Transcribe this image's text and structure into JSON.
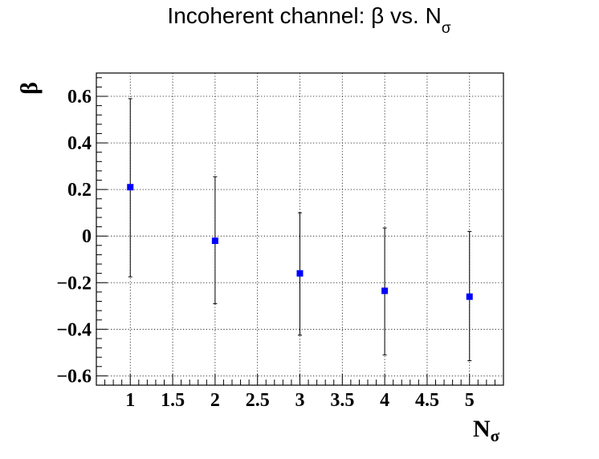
{
  "chart_data": {
    "type": "scatter",
    "title": {
      "main": "Incoherent channel: β vs. N",
      "subscript": "σ"
    },
    "xlabel": {
      "main": "N",
      "subscript": "σ"
    },
    "ylabel": "β",
    "xlim": [
      0.6,
      5.4
    ],
    "ylim": [
      -0.64,
      0.7
    ],
    "x_ticks": [
      1,
      1.5,
      2,
      2.5,
      3,
      3.5,
      4,
      4.5,
      5
    ],
    "x_tick_labels": [
      "1",
      "1.5",
      "2",
      "2.5",
      "3",
      "3.5",
      "4",
      "4.5",
      "5"
    ],
    "y_ticks": [
      -0.6,
      -0.4,
      -0.2,
      0,
      0.2,
      0.4,
      0.6
    ],
    "y_tick_labels": [
      "−0.6",
      "−0.4",
      "−0.2",
      "0",
      "0.2",
      "0.4",
      "0.6"
    ],
    "grid": true,
    "marker_color": "#0000ff",
    "series": [
      {
        "x": [
          1,
          2,
          3,
          4,
          5
        ],
        "y": [
          0.21,
          -0.02,
          -0.16,
          -0.235,
          -0.26
        ],
        "y_low": [
          -0.175,
          -0.29,
          -0.425,
          -0.51,
          -0.535
        ],
        "y_high": [
          0.59,
          0.255,
          0.1,
          0.035,
          0.02
        ]
      }
    ]
  }
}
